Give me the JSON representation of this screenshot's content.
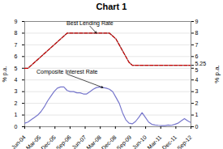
{
  "chart_data": {
    "type": "line",
    "title": "Chart 1",
    "ylabel": "% p.a.",
    "y2label": "% p.a.",
    "x": [
      0,
      1,
      2,
      3,
      4,
      5,
      6,
      7,
      8,
      9,
      10,
      11,
      12,
      13,
      14,
      15,
      16,
      17,
      18,
      19,
      20,
      21,
      22,
      23,
      24,
      25,
      26,
      27,
      28,
      29,
      30,
      31,
      32,
      33,
      34,
      35,
      36,
      37,
      38,
      39,
      40,
      41,
      42,
      43,
      44,
      45,
      46,
      47,
      48,
      49,
      50,
      51
    ],
    "xlim": [
      0,
      51
    ],
    "xticks": [
      {
        "value": 0,
        "label": "Jun-04"
      },
      {
        "value": 4.636363636363637,
        "label": "Mar-05"
      },
      {
        "value": 9.272727272727273,
        "label": "Dec-05"
      },
      {
        "value": 13.909090909090908,
        "label": "Sep-06"
      },
      {
        "value": 18.545454545454547,
        "label": "Jun-07"
      },
      {
        "value": 23.181818181818183,
        "label": "Mar-08"
      },
      {
        "value": 27.818181818181817,
        "label": "Dec-08"
      },
      {
        "value": 32.45454545454545,
        "label": "Sep-09"
      },
      {
        "value": 37.09090909090909,
        "label": "Jun-10"
      },
      {
        "value": 41.72727272727273,
        "label": "Mar-11"
      },
      {
        "value": 46.36363636363637,
        "label": "Dec-11"
      },
      {
        "value": 51,
        "label": "Sep-12"
      }
    ],
    "ylim": [
      0,
      9
    ],
    "yticks": [
      0,
      1,
      2,
      3,
      4,
      5,
      6,
      7,
      8,
      9
    ],
    "y2lim": [
      0,
      9
    ],
    "y2ticks": [
      0,
      1,
      2,
      3,
      4,
      5,
      5.25,
      6,
      7,
      8,
      9
    ],
    "grid": "y",
    "series": [
      {
        "color": "#888888",
        "line_style": "solid",
        "values": [
          5.0,
          5.0,
          5.25,
          5.5,
          5.75,
          6.0,
          6.25,
          6.5,
          6.75,
          7.0,
          7.25,
          7.5,
          7.75,
          8.0,
          8.0,
          8.0,
          8.0,
          8.0,
          8.0,
          8.0,
          8.0,
          8.0,
          8.0,
          8.0,
          8.0,
          8.0,
          8.0,
          7.75,
          7.5,
          7.0,
          6.5,
          6.0,
          5.5,
          5.25,
          5.25,
          5.25,
          5.25,
          5.25,
          5.25,
          5.25,
          5.25,
          5.25,
          5.25,
          5.25,
          5.25,
          5.25,
          5.25,
          5.25,
          5.25,
          5.25,
          5.25,
          5.25
        ]
      },
      {
        "color": "#cc0000",
        "line_style": "dashed",
        "values": [
          5.0,
          5.0,
          5.25,
          5.5,
          5.75,
          6.0,
          6.25,
          6.5,
          6.75,
          7.0,
          7.25,
          7.5,
          7.75,
          8.0,
          8.0,
          8.0,
          8.0,
          8.0,
          8.0,
          8.0,
          8.0,
          8.0,
          8.0,
          8.0,
          8.0,
          8.0,
          8.0,
          7.75,
          7.5,
          7.0,
          6.5,
          6.0,
          5.5,
          5.25,
          5.25,
          5.25,
          5.25,
          5.25,
          5.25,
          5.25,
          5.25,
          5.25,
          5.25,
          5.25,
          5.25,
          5.25,
          5.25,
          5.25,
          5.25,
          5.25,
          5.25,
          5.25
        ]
      },
      {
        "color": "#7777cc",
        "line_style": "solid",
        "values": [
          0.3,
          0.4,
          0.6,
          0.8,
          1.0,
          1.3,
          1.7,
          2.2,
          2.6,
          3.0,
          3.3,
          3.4,
          3.4,
          3.1,
          3.0,
          3.0,
          2.9,
          2.9,
          2.8,
          2.8,
          3.0,
          3.2,
          3.35,
          3.4,
          3.35,
          3.3,
          3.2,
          3.0,
          2.5,
          2.0,
          1.2,
          0.6,
          0.3,
          0.25,
          0.45,
          0.8,
          1.2,
          0.8,
          0.4,
          0.2,
          0.15,
          0.12,
          0.1,
          0.1,
          0.15,
          0.12,
          0.2,
          0.3,
          0.5,
          0.7,
          0.5,
          0.35
        ]
      }
    ],
    "annotations": [
      {
        "text": "Best Lending Rate",
        "x": 22,
        "y": 8.0,
        "text_x": 20,
        "text_y": 8.6
      },
      {
        "text": "Composite Interest Rate",
        "x": 24,
        "y": 3.35,
        "text_x": 13,
        "text_y": 4.5
      }
    ]
  }
}
